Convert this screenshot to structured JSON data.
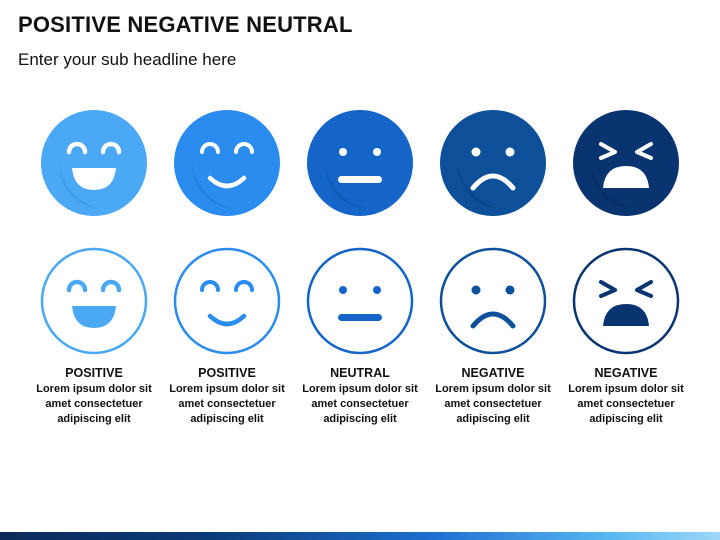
{
  "title": "POSITIVE NEGATIVE NEUTRAL",
  "subtitle": "Enter your sub headline here",
  "faces": [
    {
      "label": "POSITIVE",
      "desc_line1": "Lorem ipsum dolor sit",
      "desc_line2": "amet consectetuer",
      "desc_line3": "adipiscing elit",
      "color": "#4aa8f5",
      "expression": "laughing"
    },
    {
      "label": "POSITIVE",
      "desc_line1": "Lorem ipsum dolor sit",
      "desc_line2": "amet consectetuer",
      "desc_line3": "adipiscing elit",
      "color": "#2b8cef",
      "expression": "smiling"
    },
    {
      "label": "NEUTRAL",
      "desc_line1": "Lorem ipsum dolor sit",
      "desc_line2": "amet consectetuer",
      "desc_line3": "adipiscing elit",
      "color": "#1565c8",
      "expression": "neutral"
    },
    {
      "label": "NEGATIVE",
      "desc_line1": "Lorem ipsum dolor sit",
      "desc_line2": "amet consectetuer",
      "desc_line3": "adipiscing elit",
      "color": "#0d4f98",
      "expression": "sad"
    },
    {
      "label": "NEGATIVE",
      "desc_line1": "Lorem ipsum dolor sit",
      "desc_line2": "amet consectetuer",
      "desc_line3": "adipiscing elit",
      "color": "#0a3470",
      "expression": "angry"
    }
  ],
  "colors": {
    "footer_dark": "#0b2a5a",
    "footer_light": "#9dd7f8"
  }
}
